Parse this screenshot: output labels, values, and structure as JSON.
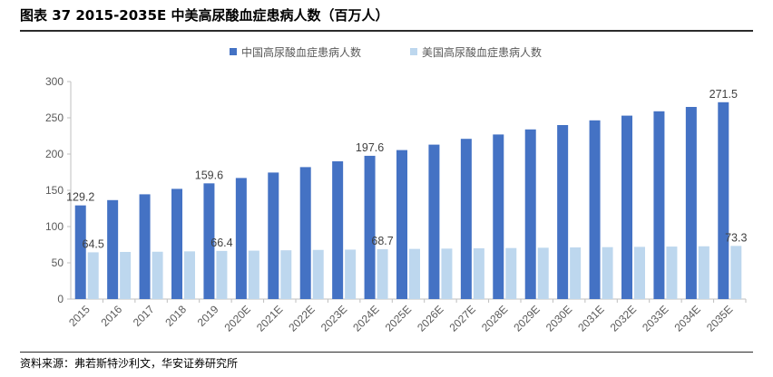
{
  "title": "图表 37 2015-2035E 中美高尿酸血症患病人数（百万人）",
  "source": "资料来源：弗若斯特沙利文，华安证券研究所",
  "colors": {
    "china": "#4472C4",
    "us": "#BDD7EE",
    "axis": "#BFBFBF",
    "text": "#595959"
  },
  "chart_data": {
    "type": "bar",
    "categories": [
      "2015",
      "2016",
      "2017",
      "2018",
      "2019",
      "2020E",
      "2021E",
      "2022E",
      "2023E",
      "2024E",
      "2025E",
      "2026E",
      "2027E",
      "2028E",
      "2029E",
      "2030E",
      "2031E",
      "2032E",
      "2033E",
      "2034E",
      "2035E"
    ],
    "series": [
      {
        "name": "中国高尿酸血症患病人数",
        "values": [
          129.2,
          136.5,
          144.5,
          152,
          159.6,
          167,
          174.5,
          182,
          190,
          197.6,
          205.5,
          213,
          221,
          227,
          234,
          240,
          246.5,
          253,
          259,
          265,
          271.5
        ],
        "labels": [
          "129.2",
          "",
          "",
          "",
          "159.6",
          "",
          "",
          "",
          "",
          "197.6",
          "",
          "",
          "",
          "",
          "",
          "",
          "",
          "",
          "",
          "",
          "271.5"
        ]
      },
      {
        "name": "美国高尿酸血症患病人数",
        "values": [
          64.5,
          65,
          65.3,
          65.8,
          66.4,
          66.8,
          67.3,
          67.8,
          68.2,
          68.7,
          69.2,
          69.6,
          70,
          70.4,
          70.8,
          71.2,
          71.6,
          72,
          72.4,
          72.8,
          73.3
        ],
        "labels": [
          "64.5",
          "",
          "",
          "",
          "66.4",
          "",
          "",
          "",
          "",
          "68.7",
          "",
          "",
          "",
          "",
          "",
          "",
          "",
          "",
          "",
          "",
          "73.3"
        ]
      }
    ],
    "yticks": [
      "0",
      "50",
      "100",
      "150",
      "200",
      "250",
      "300"
    ],
    "ylim": [
      0,
      300
    ],
    "grid": false,
    "legend_position": "top"
  }
}
